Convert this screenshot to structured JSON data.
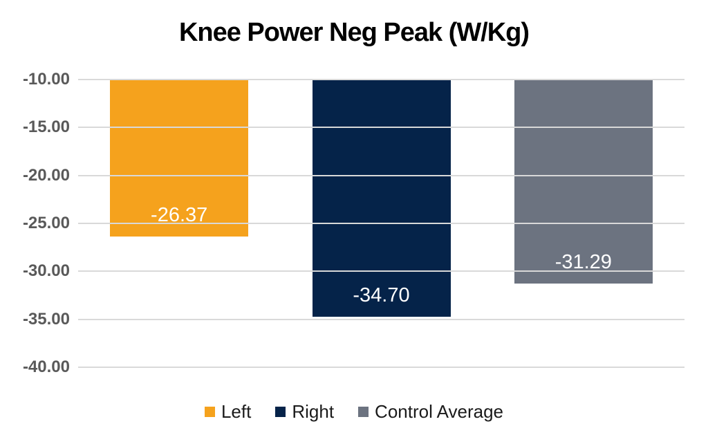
{
  "chart_data": {
    "type": "bar",
    "title": "Knee Power Neg Peak (W/Kg)",
    "categories": [
      "Left",
      "Right",
      "Control Average"
    ],
    "series": [
      {
        "name": "Left",
        "value": -26.37,
        "data_label": "-26.37",
        "color": "#F5A21D"
      },
      {
        "name": "Right",
        "value": -34.7,
        "data_label": "-34.70",
        "color": "#052349"
      },
      {
        "name": "Control Average",
        "value": -31.29,
        "data_label": "-31.29",
        "color": "#6C7380"
      }
    ],
    "y_axis": {
      "top_value": -10,
      "bottom_value": -40,
      "step": -5,
      "tick_labels": [
        "-10.00",
        "-15.00",
        "-20.00",
        "-25.00",
        "-30.00",
        "-35.00",
        "-40.00"
      ],
      "tick_color": "#595959",
      "gridline_color": "#D9D9D9",
      "grid": true
    },
    "legend": {
      "position": "bottom",
      "items": [
        {
          "label": "Left",
          "color": "#F5A21D"
        },
        {
          "label": "Right",
          "color": "#052349"
        },
        {
          "label": "Control Average",
          "color": "#6C7380"
        }
      ]
    },
    "data_label_color": "#FFFFFF",
    "background": "#FFFFFF"
  }
}
